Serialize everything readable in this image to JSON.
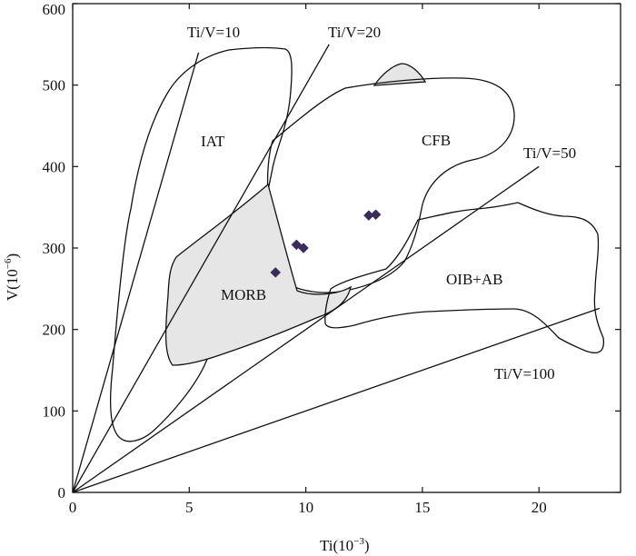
{
  "chart_data": {
    "type": "scatter",
    "title": "",
    "xlabel": {
      "base": "Ti(10",
      "sup": "−3",
      "tail": ")"
    },
    "ylabel": {
      "base": "V(10",
      "sup": "−6",
      "tail": ")"
    },
    "xlim": [
      0,
      23.5
    ],
    "ylim": [
      0,
      600
    ],
    "x_ticks": [
      0,
      5,
      10,
      15,
      20
    ],
    "y_ticks": [
      0,
      100,
      200,
      300,
      400,
      500,
      600
    ],
    "x_tick_labels": [
      "0",
      "5",
      "10",
      "15",
      "20"
    ],
    "y_tick_labels": [
      "0",
      "100",
      "200",
      "300",
      "400",
      "500",
      "600"
    ],
    "grid": false,
    "ratio_lines": [
      {
        "ratio": 10,
        "label": "Ti/V=10",
        "end": [
          5.4,
          540
        ]
      },
      {
        "ratio": 20,
        "label": "Ti/V=20",
        "end": [
          11.0,
          550
        ]
      },
      {
        "ratio": 50,
        "label": "Ti/V=50",
        "end": [
          20.0,
          400
        ]
      },
      {
        "ratio": 100,
        "label": "Ti/V=100",
        "end": [
          22.6,
          226
        ]
      }
    ],
    "fields": [
      {
        "label": "IAT",
        "filled": false
      },
      {
        "label": "CFB",
        "filled": false
      },
      {
        "label": "MORB",
        "filled": true
      },
      {
        "label": "OIB+AB",
        "filled": false
      }
    ],
    "series": [
      {
        "name": "samples",
        "marker": "diamond",
        "color": "#3a2c5c",
        "points": [
          {
            "x": 8.7,
            "y": 270
          },
          {
            "x": 9.6,
            "y": 304
          },
          {
            "x": 9.9,
            "y": 300
          },
          {
            "x": 12.7,
            "y": 340
          },
          {
            "x": 13.0,
            "y": 341
          }
        ]
      }
    ]
  }
}
